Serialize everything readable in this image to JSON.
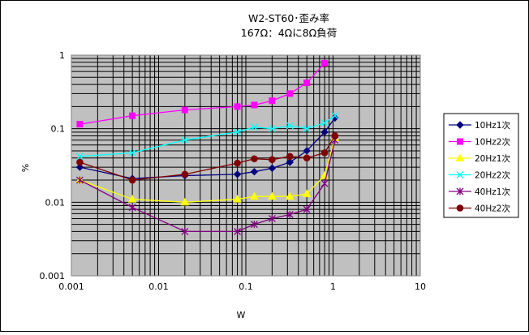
{
  "chart_data": {
    "type": "scatter",
    "title": "W2-ST60･歪み率",
    "subtitle": "167Ω：4Ωに8Ω負荷",
    "xlabel": "W",
    "ylabel": "%",
    "xscale": "log",
    "yscale": "log",
    "xlim": [
      0.001,
      10
    ],
    "ylim": [
      0.001,
      1
    ],
    "x_ticks": [
      "0.001",
      "0.01",
      "0.1",
      "1",
      "10"
    ],
    "y_ticks": [
      "1",
      "0.1",
      "0.01",
      "0.001"
    ],
    "grid": true,
    "legend_position": "right",
    "series": [
      {
        "name": "10Hz1次",
        "color": "#000080",
        "marker": "diamond",
        "x": [
          0.00125,
          0.005,
          0.02,
          0.08,
          0.125,
          0.2,
          0.32,
          0.5,
          0.8,
          1.05
        ],
        "y": [
          0.03,
          0.021,
          0.023,
          0.024,
          0.026,
          0.029,
          0.035,
          0.05,
          0.09,
          0.14
        ]
      },
      {
        "name": "10Hz2次",
        "color": "#ff00ff",
        "marker": "square",
        "x": [
          0.00125,
          0.005,
          0.02,
          0.08,
          0.125,
          0.2,
          0.32,
          0.5,
          0.8
        ],
        "y": [
          0.115,
          0.15,
          0.18,
          0.2,
          0.21,
          0.24,
          0.3,
          0.42,
          0.78
        ]
      },
      {
        "name": "20Hz1次",
        "color": "#ffff00",
        "marker": "triangle",
        "x": [
          0.00125,
          0.005,
          0.02,
          0.08,
          0.125,
          0.2,
          0.32,
          0.5,
          0.8,
          1.05
        ],
        "y": [
          0.02,
          0.011,
          0.01,
          0.011,
          0.012,
          0.012,
          0.012,
          0.013,
          0.023,
          0.075
        ]
      },
      {
        "name": "20Hz2次",
        "color": "#00ffff",
        "marker": "x",
        "x": [
          0.00125,
          0.005,
          0.02,
          0.08,
          0.125,
          0.2,
          0.32,
          0.5,
          0.8,
          1.05
        ],
        "y": [
          0.042,
          0.047,
          0.07,
          0.09,
          0.105,
          0.1,
          0.11,
          0.1,
          0.12,
          0.15
        ]
      },
      {
        "name": "40Hz1次",
        "color": "#800080",
        "marker": "star",
        "x": [
          0.00125,
          0.005,
          0.02,
          0.08,
          0.125,
          0.2,
          0.32,
          0.5,
          0.8,
          1.05
        ],
        "y": [
          0.02,
          0.0085,
          0.004,
          0.004,
          0.005,
          0.006,
          0.0068,
          0.008,
          0.018,
          0.07
        ]
      },
      {
        "name": "40Hz2次",
        "color": "#800000",
        "marker": "circle",
        "x": [
          0.00125,
          0.005,
          0.02,
          0.08,
          0.125,
          0.2,
          0.32,
          0.5,
          0.8,
          1.05
        ],
        "y": [
          0.035,
          0.02,
          0.024,
          0.034,
          0.039,
          0.038,
          0.042,
          0.04,
          0.047,
          0.08
        ]
      }
    ]
  }
}
